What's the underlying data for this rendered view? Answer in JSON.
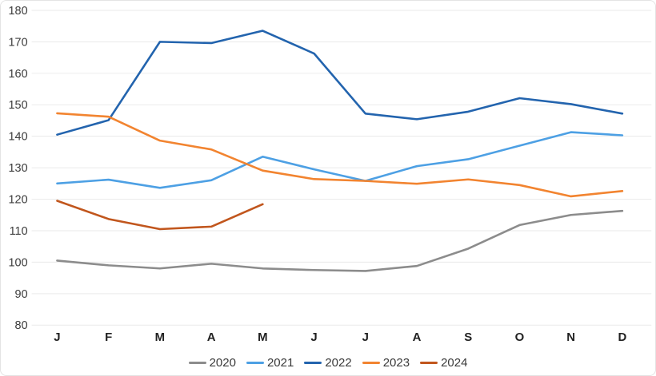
{
  "styles": {
    "background": "#ffffff",
    "border": "#e4e4e4",
    "gridline": "#eaeaea",
    "y_label_color": "#3d3d3d",
    "x_label_color": "#212121",
    "legend_text_color": "#3a3a3a"
  },
  "chart_data": {
    "type": "line",
    "title": "",
    "xlabel": "",
    "ylabel": "",
    "x": [
      "J",
      "F",
      "M",
      "A",
      "M",
      "J",
      "J",
      "A",
      "S",
      "O",
      "N",
      "D"
    ],
    "ylim": [
      80,
      180
    ],
    "ytick_step": 10,
    "ytick_labels": [
      "80",
      "90",
      "100",
      "110",
      "120",
      "130",
      "140",
      "150",
      "160",
      "170",
      "180"
    ],
    "grid": "horizontal",
    "legend_position": "bottom",
    "series": [
      {
        "name": "2020",
        "color": "#8c8c8c",
        "values": [
          100.5,
          99,
          98,
          99.5,
          98,
          97.5,
          97.2,
          98.8,
          104.3,
          111.8,
          115,
          116.3
        ]
      },
      {
        "name": "2021",
        "color": "#4da0e4",
        "values": [
          125,
          126.2,
          123.6,
          126,
          133.5,
          129.5,
          125.8,
          130.5,
          132.7,
          137,
          141.3,
          140.3
        ]
      },
      {
        "name": "2022",
        "color": "#2364ae",
        "values": [
          140.5,
          145.1,
          170,
          169.6,
          173.5,
          166.3,
          147.2,
          145.4,
          147.8,
          152.1,
          150.2,
          147.2
        ]
      },
      {
        "name": "2023",
        "color": "#f28430",
        "values": [
          147.3,
          146.2,
          138.6,
          135.8,
          129.1,
          126.4,
          125.8,
          124.9,
          126.3,
          124.5,
          120.9,
          122.6
        ]
      },
      {
        "name": "2024",
        "color": "#c1561d",
        "values": [
          119.5,
          113.7,
          110.5,
          111.3,
          118.4
        ]
      }
    ]
  }
}
